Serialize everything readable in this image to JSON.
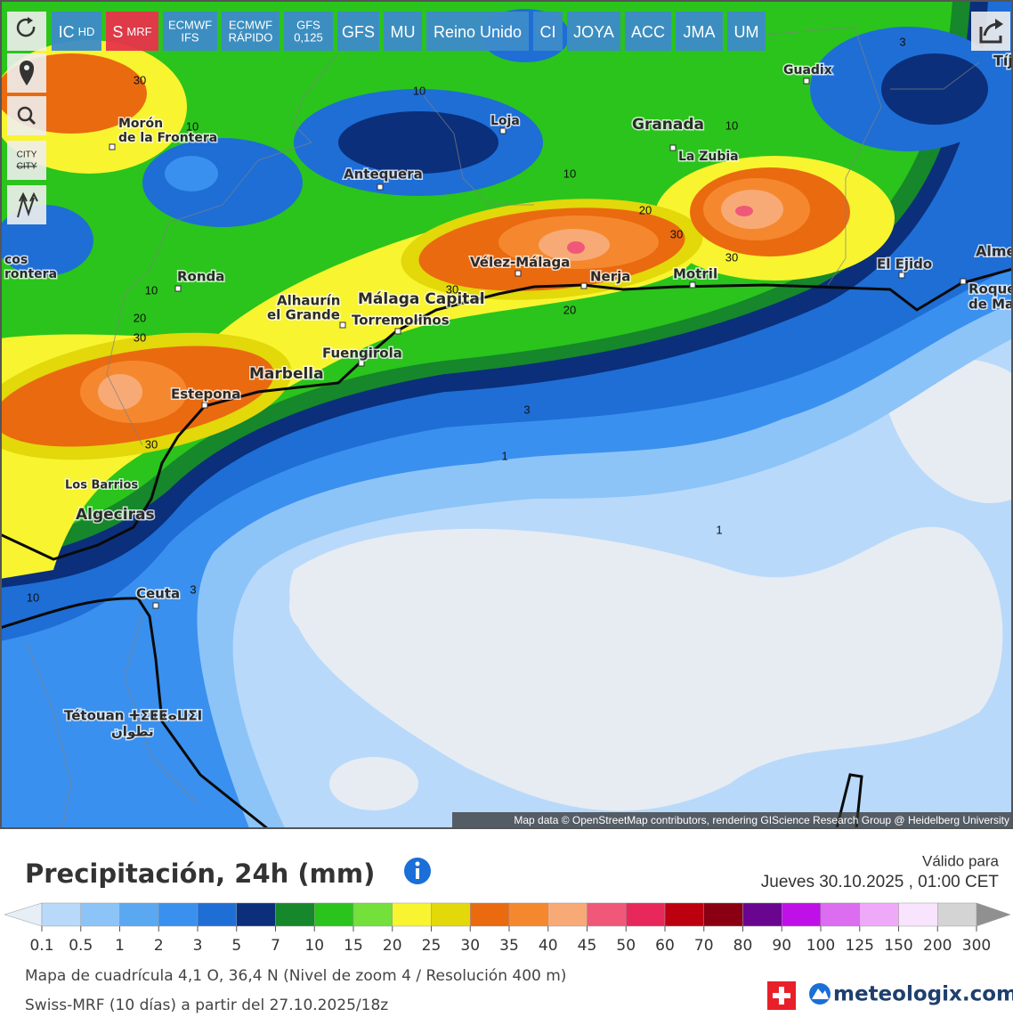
{
  "toolbar": {
    "buttons": [
      {
        "main": "IC",
        "sub": "HD"
      },
      {
        "main": "S",
        "sub": "MRF",
        "selected": true
      },
      {
        "top": "ECMWF",
        "bottom": "IFS"
      },
      {
        "top": "ECMWF",
        "bottom": "RÁPIDO"
      },
      {
        "top": "GFS",
        "bottom": "0,125"
      },
      {
        "main": "GFS"
      },
      {
        "main": "MU"
      },
      {
        "main": "Reino Unido"
      },
      {
        "main": "CI"
      },
      {
        "main": "JOYA"
      },
      {
        "main": "ACC"
      },
      {
        "main": "JMA"
      },
      {
        "main": "UM"
      }
    ],
    "city_toggle": "CITY"
  },
  "map": {
    "places": [
      "Guadix",
      "Morón",
      "de la Frontera",
      "Loja",
      "Granada",
      "La Zubia",
      "Antequera",
      "Vélez-Málaga",
      "Nerja",
      "Motril",
      "El Ejido",
      "Alme",
      "Roque",
      "de Ma",
      "Ronda",
      "Alhaurín",
      "el Grande",
      "Málaga Capital",
      "Torremolinos",
      "Fuengirola",
      "Marbella",
      "Estepona",
      "Los Barrios",
      "Algeciras",
      "Ceuta",
      "Tétouan ⵜⵉⵟⵟⴰⵡⵉⵏ",
      "تطوان",
      "cos",
      "rontera",
      "Tíj"
    ],
    "contour_labels": [
      30,
      10,
      10,
      10,
      20,
      30,
      30,
      10,
      3,
      20,
      30,
      10,
      20,
      30,
      30,
      3,
      1,
      1,
      3,
      10
    ],
    "attribution": "Map data © OpenStreetMap contributors, rendering GIScience Research Group @ Heidelberg University"
  },
  "legend": {
    "title": "Precipitación, 24h (mm)",
    "valid_label": "Válido para",
    "valid_date": "Jueves 30.10.2025 , 01:00 CET",
    "ticks": [
      0.1,
      0.5,
      1,
      2,
      3,
      5,
      7,
      10,
      15,
      20,
      25,
      30,
      35,
      40,
      45,
      50,
      60,
      70,
      80,
      90,
      100,
      125,
      150,
      200,
      300
    ],
    "colors": [
      "#b9d9fb",
      "#8cc4f8",
      "#5aa8f2",
      "#3a90ee",
      "#1e6ed6",
      "#0b2f7a",
      "#16872a",
      "#2ac41c",
      "#74e03c",
      "#f8f430",
      "#e2d80a",
      "#ea6a10",
      "#f5882e",
      "#f8aa76",
      "#f0587a",
      "#e8285a",
      "#bc0010",
      "#8a0012",
      "#6a0590",
      "#c010e8",
      "#dc6cf0",
      "#eeaaf8",
      "#f8e4fc",
      "#d4d4d4"
    ],
    "low_color": "#e6eef6",
    "high_color": "#909090"
  },
  "footer": {
    "grid_info": "Mapa de cuadrícula 4,1 O, 36,4 N (Nivel de zoom 4 / Resolución 400 m)",
    "model_info": "Swiss-MRF (10 días) a partir del 27.10.2025/18z",
    "brand": "meteologix.com"
  }
}
